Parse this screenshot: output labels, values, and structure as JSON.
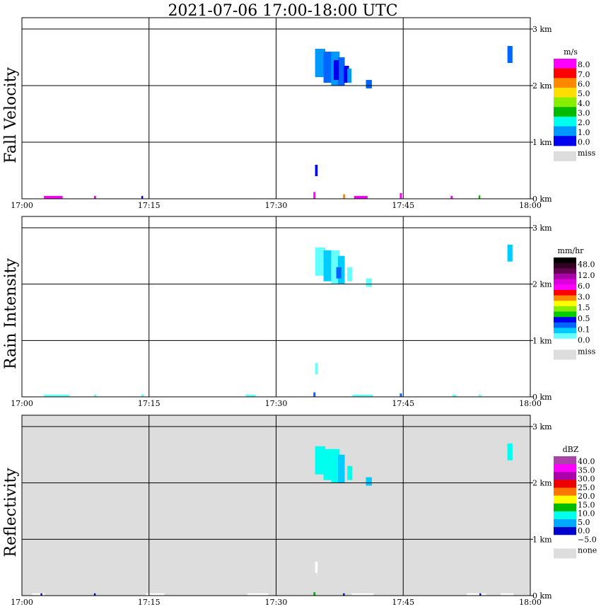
{
  "title": "2021-07-06   17:00-18:00 UTC",
  "chart_data": {
    "type": "heatmap",
    "x_ticks": [
      "17:00",
      "17:15",
      "17:30",
      "17:45",
      "18:00"
    ],
    "x_range": [
      "17:00",
      "18:00"
    ],
    "y_ticks": [
      "0 km",
      "1 km",
      "2 km",
      "3 km"
    ],
    "y_range_km": [
      0,
      3.2
    ],
    "grid": true,
    "panels": [
      {
        "name": "Fall Velocity",
        "background": "#ffffff",
        "colorbar": {
          "unit": "m/s",
          "labels": [
            "8.0",
            "7.0",
            "6.0",
            "5.0",
            "4.0",
            "3.0",
            "2.0",
            "1.0",
            "0.0"
          ],
          "colors": [
            "#ff00ff",
            "#ff0000",
            "#ff8800",
            "#ffdd00",
            "#88ee00",
            "#00bb00",
            "#00ffee",
            "#0099ff",
            "#0000ee"
          ],
          "missing_label": "miss",
          "missing_color": "#dddddd"
        },
        "cells": [
          {
            "t": 34.6,
            "z0": 2.15,
            "z1": 2.65,
            "c": "#0099ff",
            "w": 1.2
          },
          {
            "t": 35.6,
            "z0": 2.05,
            "z1": 2.6,
            "c": "#0066ff",
            "w": 1.0
          },
          {
            "t": 36.5,
            "z0": 2.0,
            "z1": 2.6,
            "c": "#0099ff",
            "w": 1.0
          },
          {
            "t": 37.3,
            "z0": 2.0,
            "z1": 2.5,
            "c": "#0066ff",
            "w": 0.8
          },
          {
            "t": 36.8,
            "z0": 2.1,
            "z1": 2.45,
            "c": "#0000ee",
            "w": 0.6
          },
          {
            "t": 38.0,
            "z0": 2.05,
            "z1": 2.35,
            "c": "#0000ee",
            "w": 0.6
          },
          {
            "t": 38.4,
            "z0": 2.05,
            "z1": 2.3,
            "c": "#0099ff",
            "w": 0.5
          },
          {
            "t": 40.6,
            "z0": 1.95,
            "z1": 2.1,
            "c": "#0066ff",
            "w": 0.7
          },
          {
            "t": 57.3,
            "z0": 2.4,
            "z1": 2.7,
            "c": "#0066ff",
            "w": 0.6
          },
          {
            "t": 34.6,
            "z0": 0.4,
            "z1": 0.6,
            "c": "#0000ee",
            "w": 0.3
          },
          {
            "t": 2.6,
            "z0": 0.0,
            "z1": 0.05,
            "c": "#ff00ff",
            "w": 2.2
          },
          {
            "t": 8.5,
            "z0": 0.0,
            "z1": 0.05,
            "c": "#ff00ff",
            "w": 0.25
          },
          {
            "t": 14.1,
            "z0": 0.0,
            "z1": 0.05,
            "c": "#0000ee",
            "w": 0.2
          },
          {
            "t": 34.4,
            "z0": 0.0,
            "z1": 0.12,
            "c": "#ff00ff",
            "w": 0.25
          },
          {
            "t": 37.9,
            "z0": 0.0,
            "z1": 0.08,
            "c": "#ff8800",
            "w": 0.25
          },
          {
            "t": 39.2,
            "z0": 0.0,
            "z1": 0.05,
            "c": "#ff00ff",
            "w": 1.6
          },
          {
            "t": 44.6,
            "z0": 0.0,
            "z1": 0.1,
            "c": "#ff00ff",
            "w": 0.25
          },
          {
            "t": 50.6,
            "z0": 0.0,
            "z1": 0.05,
            "c": "#ff00ff",
            "w": 0.25
          },
          {
            "t": 53.9,
            "z0": 0.0,
            "z1": 0.06,
            "c": "#00bb00",
            "w": 0.2
          }
        ]
      },
      {
        "name": "Rain Intensity",
        "background": "#ffffff",
        "colorbar": {
          "unit": "mm/hr",
          "labels": [
            "48.0",
            "12.0",
            "6.0",
            "3.0",
            "1.5",
            "0.5",
            "0.1",
            "0.0"
          ],
          "colors": [
            "#000000",
            "#330022",
            "#660055",
            "#aa00aa",
            "#dd00dd",
            "#ff00ff",
            "#ff0000",
            "#ff8800",
            "#ffff00",
            "#88ee00",
            "#00cc00",
            "#0000ee",
            "#0066ff",
            "#00ccff",
            "#66ffff",
            "#ffffff"
          ],
          "missing_label": "miss",
          "missing_color": "#dddddd"
        },
        "cells": [
          {
            "t": 34.6,
            "z0": 2.15,
            "z1": 2.65,
            "c": "#66ffff",
            "w": 1.2
          },
          {
            "t": 35.6,
            "z0": 2.05,
            "z1": 2.6,
            "c": "#00ccff",
            "w": 1.0
          },
          {
            "t": 36.5,
            "z0": 2.0,
            "z1": 2.6,
            "c": "#66ffff",
            "w": 1.0
          },
          {
            "t": 37.3,
            "z0": 2.0,
            "z1": 2.5,
            "c": "#00ccff",
            "w": 0.8
          },
          {
            "t": 37.1,
            "z0": 2.1,
            "z1": 2.3,
            "c": "#0066ff",
            "w": 0.6
          },
          {
            "t": 38.4,
            "z0": 2.05,
            "z1": 2.3,
            "c": "#66ffff",
            "w": 0.6
          },
          {
            "t": 40.6,
            "z0": 1.95,
            "z1": 2.1,
            "c": "#66ffff",
            "w": 0.7
          },
          {
            "t": 57.3,
            "z0": 2.4,
            "z1": 2.7,
            "c": "#00ccff",
            "w": 0.6
          },
          {
            "t": 34.6,
            "z0": 0.4,
            "z1": 0.6,
            "c": "#66ffff",
            "w": 0.3
          },
          {
            "t": 2.6,
            "z0": 0.0,
            "z1": 0.04,
            "c": "#66ffff",
            "w": 3.0
          },
          {
            "t": 8.5,
            "z0": 0.0,
            "z1": 0.04,
            "c": "#66ffff",
            "w": 0.3
          },
          {
            "t": 14.1,
            "z0": 0.0,
            "z1": 0.04,
            "c": "#66ffff",
            "w": 0.3
          },
          {
            "t": 26.4,
            "z0": 0.0,
            "z1": 0.04,
            "c": "#66ffff",
            "w": 1.2
          },
          {
            "t": 34.4,
            "z0": 0.0,
            "z1": 0.08,
            "c": "#0066ff",
            "w": 0.25
          },
          {
            "t": 39.0,
            "z0": 0.0,
            "z1": 0.04,
            "c": "#66ffff",
            "w": 2.4
          },
          {
            "t": 44.6,
            "z0": 0.0,
            "z1": 0.06,
            "c": "#0066ff",
            "w": 0.25
          },
          {
            "t": 50.8,
            "z0": 0.0,
            "z1": 0.04,
            "c": "#66ffff",
            "w": 0.5
          },
          {
            "t": 53.9,
            "z0": 0.0,
            "z1": 0.04,
            "c": "#66ffff",
            "w": 0.3
          }
        ]
      },
      {
        "name": "Reflectivity",
        "background": "#dddddd",
        "colorbar": {
          "unit": "dBZ",
          "labels": [
            "40.0",
            "35.0",
            "30.0",
            "25.0",
            "20.0",
            "15.0",
            "10.0",
            "5.0",
            "0.0",
            "−5.0"
          ],
          "colors": [
            "#aa44aa",
            "#ff00ff",
            "#aa00aa",
            "#ee0000",
            "#ff7700",
            "#ffff00",
            "#00bb00",
            "#00ffee",
            "#00aaff",
            "#0000cc",
            "#ffffff"
          ],
          "missing_label": "none",
          "missing_color": "#dddddd"
        },
        "cells": [
          {
            "t": 34.6,
            "z0": 2.15,
            "z1": 2.65,
            "c": "#00ffee",
            "w": 1.2
          },
          {
            "t": 35.6,
            "z0": 2.05,
            "z1": 2.6,
            "c": "#00ffee",
            "w": 1.0
          },
          {
            "t": 36.5,
            "z0": 2.0,
            "z1": 2.6,
            "c": "#00ffee",
            "w": 1.0
          },
          {
            "t": 37.3,
            "z0": 2.0,
            "z1": 2.5,
            "c": "#00ccff",
            "w": 0.8
          },
          {
            "t": 38.4,
            "z0": 2.05,
            "z1": 2.3,
            "c": "#00ffee",
            "w": 0.6
          },
          {
            "t": 40.6,
            "z0": 1.95,
            "z1": 2.1,
            "c": "#00ccff",
            "w": 0.7
          },
          {
            "t": 57.3,
            "z0": 2.4,
            "z1": 2.7,
            "c": "#00ffee",
            "w": 0.6
          },
          {
            "t": 34.6,
            "z0": 0.4,
            "z1": 0.6,
            "c": "#ffffff",
            "w": 0.3
          },
          {
            "t": 1.2,
            "z0": 0.0,
            "z1": 0.04,
            "c": "#ffffff",
            "w": 1.5
          },
          {
            "t": 2.2,
            "z0": 0.0,
            "z1": 0.04,
            "c": "#0000cc",
            "w": 0.2
          },
          {
            "t": 8.5,
            "z0": 0.0,
            "z1": 0.04,
            "c": "#0000cc",
            "w": 0.2
          },
          {
            "t": 14.6,
            "z0": 0.0,
            "z1": 0.04,
            "c": "#ffffff",
            "w": 2.2
          },
          {
            "t": 26.6,
            "z0": 0.0,
            "z1": 0.04,
            "c": "#ffffff",
            "w": 2.5
          },
          {
            "t": 34.4,
            "z0": 0.0,
            "z1": 0.06,
            "c": "#00bb00",
            "w": 0.25
          },
          {
            "t": 38.9,
            "z0": 0.0,
            "z1": 0.04,
            "c": "#ffffff",
            "w": 2.6
          },
          {
            "t": 37.9,
            "z0": 0.0,
            "z1": 0.04,
            "c": "#0000cc",
            "w": 0.2
          },
          {
            "t": 52.5,
            "z0": 0.0,
            "z1": 0.04,
            "c": "#ffffff",
            "w": 2.3
          },
          {
            "t": 56.5,
            "z0": 0.0,
            "z1": 0.04,
            "c": "#ffffff",
            "w": 1.5
          },
          {
            "t": 54.0,
            "z0": 0.0,
            "z1": 0.04,
            "c": "#0000cc",
            "w": 0.2
          }
        ]
      }
    ]
  }
}
